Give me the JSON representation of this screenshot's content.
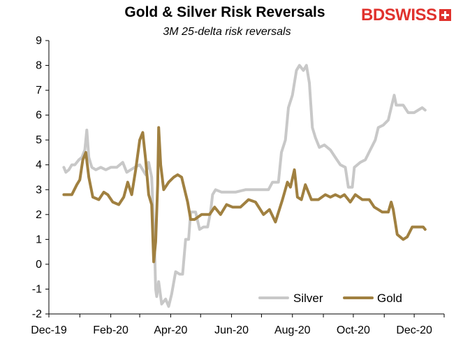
{
  "brand": {
    "logo_text": "BDSWISS",
    "logo_color": "#e0322d"
  },
  "chart_data": {
    "type": "line",
    "title": "Gold & Silver Risk Reversals",
    "subtitle": "3M 25-delta risk reversals",
    "xlabel": "",
    "ylabel": "",
    "ylim": [
      -2,
      9
    ],
    "yticks": [
      "-2",
      "-1",
      "0",
      "1",
      "2",
      "3",
      "4",
      "5",
      "6",
      "7",
      "8",
      "9"
    ],
    "xticks": [
      "Dec-19",
      "Feb-20",
      "Apr-20",
      "Jun-20",
      "Aug-20",
      "Oct-20",
      "Dec-20"
    ],
    "xtick_dates": [
      "2019-12-01",
      "2020-02-01",
      "2020-04-01",
      "2020-06-01",
      "2020-08-01",
      "2020-10-01",
      "2020-12-01"
    ],
    "xlim": [
      "2019-12-01",
      "2020-12-31"
    ],
    "grid": false,
    "legend_position": "bottom-right",
    "series": [
      {
        "name": "Silver",
        "color": "#c8c8c8",
        "points": [
          [
            "2019-12-16",
            3.9
          ],
          [
            "2019-12-18",
            3.7
          ],
          [
            "2019-12-21",
            3.8
          ],
          [
            "2019-12-24",
            4.0
          ],
          [
            "2019-12-27",
            4.0
          ],
          [
            "2019-12-31",
            4.2
          ],
          [
            "2020-01-03",
            4.3
          ],
          [
            "2020-01-06",
            4.6
          ],
          [
            "2020-01-08",
            5.4
          ],
          [
            "2020-01-10",
            4.3
          ],
          [
            "2020-01-13",
            3.9
          ],
          [
            "2020-01-17",
            3.8
          ],
          [
            "2020-01-22",
            3.9
          ],
          [
            "2020-01-27",
            3.8
          ],
          [
            "2020-02-01",
            3.9
          ],
          [
            "2020-02-07",
            3.9
          ],
          [
            "2020-02-13",
            4.1
          ],
          [
            "2020-02-17",
            3.7
          ],
          [
            "2020-02-21",
            3.8
          ],
          [
            "2020-02-25",
            3.9
          ],
          [
            "2020-03-01",
            4.0
          ],
          [
            "2020-03-04",
            3.8
          ],
          [
            "2020-03-07",
            3.6
          ],
          [
            "2020-03-10",
            4.1
          ],
          [
            "2020-03-13",
            3.5
          ],
          [
            "2020-03-16",
            0.5
          ],
          [
            "2020-03-17",
            -1.0
          ],
          [
            "2020-03-18",
            -1.3
          ],
          [
            "2020-03-20",
            -0.7
          ],
          [
            "2020-03-23",
            -1.6
          ],
          [
            "2020-03-27",
            -1.4
          ],
          [
            "2020-03-30",
            -1.7
          ],
          [
            "2020-04-02",
            -1.2
          ],
          [
            "2020-04-06",
            -0.3
          ],
          [
            "2020-04-10",
            -0.4
          ],
          [
            "2020-04-13",
            -0.4
          ],
          [
            "2020-04-16",
            1.0
          ],
          [
            "2020-04-19",
            1.0
          ],
          [
            "2020-04-21",
            2.1
          ],
          [
            "2020-04-26",
            2.1
          ],
          [
            "2020-04-30",
            1.4
          ],
          [
            "2020-05-04",
            1.5
          ],
          [
            "2020-05-08",
            1.5
          ],
          [
            "2020-05-11",
            2.1
          ],
          [
            "2020-05-13",
            2.8
          ],
          [
            "2020-05-16",
            3.0
          ],
          [
            "2020-05-22",
            2.9
          ],
          [
            "2020-05-28",
            2.9
          ],
          [
            "2020-06-05",
            2.9
          ],
          [
            "2020-06-15",
            3.0
          ],
          [
            "2020-06-25",
            3.0
          ],
          [
            "2020-07-01",
            3.0
          ],
          [
            "2020-07-08",
            3.0
          ],
          [
            "2020-07-12",
            3.3
          ],
          [
            "2020-07-18",
            3.3
          ],
          [
            "2020-07-21",
            4.5
          ],
          [
            "2020-07-25",
            5.0
          ],
          [
            "2020-07-28",
            6.3
          ],
          [
            "2020-08-01",
            6.8
          ],
          [
            "2020-08-05",
            7.8
          ],
          [
            "2020-08-08",
            8.0
          ],
          [
            "2020-08-12",
            7.8
          ],
          [
            "2020-08-15",
            8.0
          ],
          [
            "2020-08-18",
            7.3
          ],
          [
            "2020-08-21",
            5.5
          ],
          [
            "2020-08-24",
            5.1
          ],
          [
            "2020-08-28",
            4.7
          ],
          [
            "2020-09-02",
            4.8
          ],
          [
            "2020-09-08",
            4.6
          ],
          [
            "2020-09-13",
            4.3
          ],
          [
            "2020-09-18",
            4.0
          ],
          [
            "2020-09-23",
            3.9
          ],
          [
            "2020-09-26",
            3.1
          ],
          [
            "2020-09-30",
            3.1
          ],
          [
            "2020-10-02",
            3.9
          ],
          [
            "2020-10-08",
            4.1
          ],
          [
            "2020-10-13",
            4.2
          ],
          [
            "2020-10-18",
            4.6
          ],
          [
            "2020-10-23",
            5.0
          ],
          [
            "2020-10-26",
            5.5
          ],
          [
            "2020-10-31",
            5.6
          ],
          [
            "2020-11-05",
            5.8
          ],
          [
            "2020-11-08",
            6.3
          ],
          [
            "2020-11-11",
            6.8
          ],
          [
            "2020-11-13",
            6.4
          ],
          [
            "2020-11-20",
            6.4
          ],
          [
            "2020-11-25",
            6.1
          ],
          [
            "2020-12-01",
            6.1
          ],
          [
            "2020-12-05",
            6.2
          ],
          [
            "2020-12-09",
            6.3
          ],
          [
            "2020-12-12",
            6.2
          ]
        ]
      },
      {
        "name": "Gold",
        "color": "#a08040",
        "points": [
          [
            "2019-12-16",
            2.8
          ],
          [
            "2019-12-20",
            2.8
          ],
          [
            "2019-12-24",
            2.8
          ],
          [
            "2019-12-29",
            3.2
          ],
          [
            "2020-01-01",
            3.4
          ],
          [
            "2020-01-04",
            4.2
          ],
          [
            "2020-01-07",
            4.5
          ],
          [
            "2020-01-10",
            3.5
          ],
          [
            "2020-01-14",
            2.7
          ],
          [
            "2020-01-20",
            2.6
          ],
          [
            "2020-01-25",
            2.9
          ],
          [
            "2020-01-29",
            2.8
          ],
          [
            "2020-02-03",
            2.5
          ],
          [
            "2020-02-09",
            2.4
          ],
          [
            "2020-02-14",
            2.7
          ],
          [
            "2020-02-18",
            3.3
          ],
          [
            "2020-02-22",
            2.8
          ],
          [
            "2020-02-26",
            3.8
          ],
          [
            "2020-03-01",
            5.0
          ],
          [
            "2020-03-04",
            5.3
          ],
          [
            "2020-03-07",
            4.2
          ],
          [
            "2020-03-10",
            2.8
          ],
          [
            "2020-03-13",
            2.4
          ],
          [
            "2020-03-15",
            0.1
          ],
          [
            "2020-03-17",
            0.9
          ],
          [
            "2020-03-19",
            3.2
          ],
          [
            "2020-03-20",
            5.5
          ],
          [
            "2020-03-22",
            4.0
          ],
          [
            "2020-03-25",
            3.0
          ],
          [
            "2020-03-30",
            3.3
          ],
          [
            "2020-04-04",
            3.5
          ],
          [
            "2020-04-08",
            3.6
          ],
          [
            "2020-04-12",
            3.5
          ],
          [
            "2020-04-15",
            3.0
          ],
          [
            "2020-04-18",
            2.5
          ],
          [
            "2020-04-21",
            1.8
          ],
          [
            "2020-04-25",
            1.8
          ],
          [
            "2020-05-02",
            2.0
          ],
          [
            "2020-05-10",
            2.0
          ],
          [
            "2020-05-15",
            2.3
          ],
          [
            "2020-05-21",
            2.0
          ],
          [
            "2020-05-27",
            2.4
          ],
          [
            "2020-06-02",
            2.3
          ],
          [
            "2020-06-10",
            2.3
          ],
          [
            "2020-06-18",
            2.6
          ],
          [
            "2020-06-25",
            2.5
          ],
          [
            "2020-07-03",
            2.0
          ],
          [
            "2020-07-09",
            2.2
          ],
          [
            "2020-07-15",
            1.7
          ],
          [
            "2020-07-22",
            2.6
          ],
          [
            "2020-07-27",
            3.3
          ],
          [
            "2020-07-30",
            3.1
          ],
          [
            "2020-08-03",
            3.8
          ],
          [
            "2020-08-06",
            2.7
          ],
          [
            "2020-08-10",
            2.6
          ],
          [
            "2020-08-14",
            3.2
          ],
          [
            "2020-08-20",
            2.6
          ],
          [
            "2020-08-27",
            2.6
          ],
          [
            "2020-09-03",
            2.8
          ],
          [
            "2020-09-08",
            2.7
          ],
          [
            "2020-09-13",
            2.8
          ],
          [
            "2020-09-18",
            2.7
          ],
          [
            "2020-09-22",
            2.8
          ],
          [
            "2020-09-28",
            2.5
          ],
          [
            "2020-10-03",
            2.8
          ],
          [
            "2020-10-10",
            2.6
          ],
          [
            "2020-10-17",
            2.6
          ],
          [
            "2020-10-22",
            2.3
          ],
          [
            "2020-10-26",
            2.2
          ],
          [
            "2020-10-30",
            2.1
          ],
          [
            "2020-11-05",
            2.1
          ],
          [
            "2020-11-08",
            2.5
          ],
          [
            "2020-11-10",
            2.2
          ],
          [
            "2020-11-14",
            1.2
          ],
          [
            "2020-11-20",
            1.0
          ],
          [
            "2020-11-24",
            1.1
          ],
          [
            "2020-11-29",
            1.5
          ],
          [
            "2020-12-03",
            1.5
          ],
          [
            "2020-12-06",
            1.5
          ],
          [
            "2020-12-10",
            1.5
          ],
          [
            "2020-12-12",
            1.4
          ]
        ]
      }
    ]
  }
}
